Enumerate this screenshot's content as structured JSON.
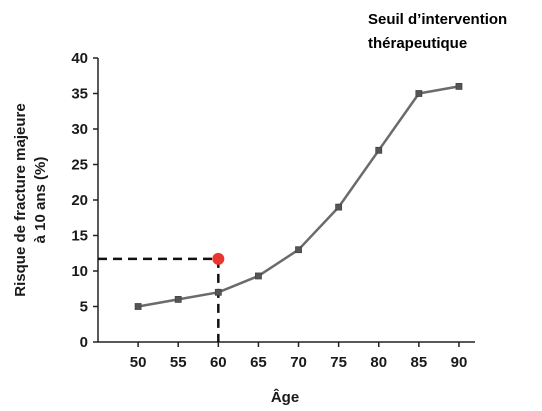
{
  "chart_data": {
    "type": "line",
    "title": "",
    "xlabel": "Âge",
    "ylabel_lines": [
      "Risque de fracture majeure",
      "à 10 ans (%)"
    ],
    "x": [
      50,
      55,
      60,
      65,
      70,
      75,
      80,
      85,
      90
    ],
    "series": [
      {
        "values": [
          5,
          6,
          7,
          9.3,
          13,
          19,
          27,
          35,
          36
        ]
      }
    ],
    "xlim": [
      45,
      92
    ],
    "ylim": [
      0,
      40
    ],
    "xticks": [
      "50",
      "55",
      "60",
      "65",
      "70",
      "75",
      "80",
      "85",
      "90"
    ],
    "yticks": [
      "0",
      "5",
      "10",
      "15",
      "20",
      "25",
      "30",
      "35",
      "40"
    ],
    "grid": false,
    "threshold_point": {
      "x": 60,
      "y": 11.7
    },
    "annotation_lines": [
      "Seuil d’intervention",
      "thérapeutique"
    ],
    "colors": {
      "line": "#6b6b6b",
      "marker": "#555555",
      "threshold": "#e8362e",
      "dashed": "#111111",
      "axis": "#222222"
    }
  }
}
